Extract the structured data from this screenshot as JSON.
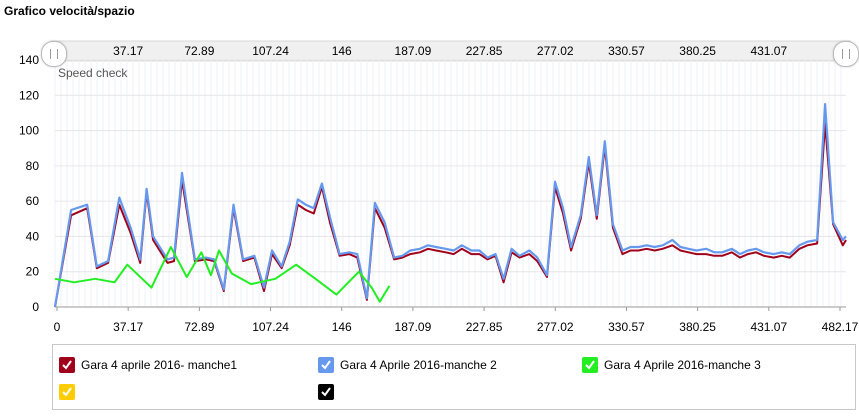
{
  "title": "Grafico velocità/spazio",
  "chart_data": {
    "type": "line",
    "annotation": "Speed check",
    "ylim": [
      0,
      140
    ],
    "yticks": [
      0,
      20,
      40,
      60,
      80,
      100,
      120,
      140
    ],
    "xlim": [
      0,
      492
    ],
    "xticks": [
      "0",
      "37.17",
      "72.89",
      "107.24",
      "146",
      "187.09",
      "227.85",
      "277.02",
      "330.57",
      "380.25",
      "431.07",
      "482.17"
    ],
    "navigator_ticks": [
      "37.17",
      "72.89",
      "107.24",
      "146",
      "187.09",
      "227.85",
      "277.02",
      "330.57",
      "380.25",
      "431.07"
    ],
    "series": [
      {
        "name": "Gara 4 aprile 2016- manche1",
        "color": "#a0001c",
        "x": [
          0,
          10,
          20,
          26,
          33,
          40,
          47,
          53,
          57,
          61,
          70,
          74,
          79,
          87,
          94,
          99,
          105,
          111,
          117,
          124,
          130,
          135,
          141,
          146,
          151,
          156,
          161,
          166,
          171,
          177,
          183,
          188,
          194,
          199,
          205,
          211,
          216,
          221,
          227,
          232,
          237,
          243,
          248,
          253,
          259,
          264,
          269,
          274,
          279,
          284,
          289,
          295,
          300,
          306,
          311,
          316,
          321,
          327,
          332,
          337,
          342,
          347,
          353,
          358,
          363,
          368,
          373,
          378,
          384,
          389,
          394,
          399,
          405,
          410,
          415,
          421,
          426,
          431,
          436,
          441,
          447,
          452,
          457,
          463,
          468,
          474,
          479,
          484,
          490
        ],
        "y": [
          0,
          52,
          56,
          22,
          25,
          58,
          42,
          25,
          65,
          38,
          25,
          26,
          72,
          26,
          27,
          26,
          9,
          56,
          26,
          28,
          9,
          30,
          22,
          35,
          58,
          55,
          53,
          68,
          48,
          29,
          30,
          28,
          4,
          56,
          45,
          27,
          28,
          30,
          31,
          33,
          32,
          31,
          30,
          33,
          30,
          30,
          27,
          29,
          14,
          31,
          28,
          30,
          26,
          17,
          68,
          53,
          32,
          50,
          82,
          50,
          91,
          45,
          30,
          32,
          32,
          33,
          32,
          33,
          35,
          32,
          31,
          30,
          30,
          29,
          29,
          31,
          28,
          30,
          31,
          29,
          28,
          29,
          28,
          33,
          35,
          36,
          104,
          47,
          35
        ],
        "y_extra": 38
      },
      {
        "name": "Gara 4 Aprile 2016-manche 2",
        "color": "#6699ee",
        "x": [
          0,
          10,
          20,
          26,
          33,
          40,
          47,
          53,
          57,
          61,
          70,
          74,
          79,
          87,
          94,
          99,
          105,
          111,
          117,
          124,
          130,
          135,
          141,
          146,
          151,
          156,
          161,
          166,
          171,
          177,
          183,
          188,
          194,
          199,
          205,
          211,
          216,
          221,
          227,
          232,
          237,
          243,
          248,
          253,
          259,
          264,
          269,
          274,
          279,
          284,
          289,
          295,
          300,
          306,
          311,
          316,
          321,
          327,
          332,
          337,
          342,
          347,
          353,
          358,
          363,
          368,
          373,
          378,
          384,
          389,
          394,
          399,
          405,
          410,
          415,
          421,
          426,
          431,
          436,
          441,
          447,
          452,
          457,
          463,
          468,
          474,
          479,
          484,
          490
        ],
        "y": [
          0,
          55,
          58,
          23,
          26,
          62,
          45,
          27,
          67,
          40,
          27,
          28,
          76,
          27,
          28,
          27,
          10,
          58,
          27,
          29,
          11,
          32,
          23,
          37,
          61,
          58,
          56,
          70,
          51,
          30,
          31,
          30,
          5,
          59,
          48,
          28,
          29,
          32,
          33,
          35,
          34,
          33,
          32,
          35,
          32,
          32,
          28,
          30,
          16,
          33,
          29,
          32,
          28,
          18,
          71,
          56,
          34,
          52,
          85,
          52,
          94,
          47,
          32,
          34,
          34,
          35,
          34,
          35,
          38,
          34,
          33,
          32,
          33,
          31,
          31,
          33,
          30,
          32,
          33,
          31,
          30,
          31,
          30,
          35,
          37,
          38,
          115,
          48,
          38
        ],
        "y_extra": 40
      },
      {
        "name": "Gara 4 Aprile 2016-manche 3",
        "color": "#22ee22",
        "x": [
          0,
          12,
          25,
          37,
          45,
          60,
          72,
          82,
          91,
          97,
          102,
          110,
          122,
          137,
          150,
          162,
          175,
          189,
          197,
          202,
          208
        ],
        "y": [
          16,
          14,
          16,
          14,
          24,
          11,
          34,
          17,
          31,
          18,
          32,
          19,
          13,
          16,
          24,
          16,
          7,
          20,
          11,
          3,
          12
        ]
      },
      {
        "name": "",
        "color": "#ffcc00",
        "x": [],
        "y": []
      },
      {
        "name": "",
        "color": "#000000",
        "x": [],
        "y": []
      }
    ]
  }
}
